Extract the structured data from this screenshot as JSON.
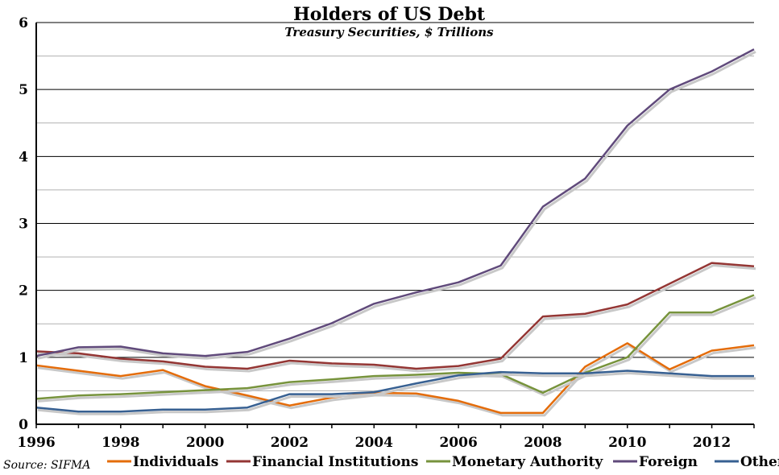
{
  "chart_data": {
    "type": "line",
    "title": "Holders of US Debt",
    "subtitle": "Treasury Securities, $ Trillions",
    "source": "Source: SIFMA",
    "xlabel": "",
    "ylabel": "",
    "x": [
      1996,
      1997,
      1998,
      1999,
      2000,
      2001,
      2002,
      2003,
      2004,
      2005,
      2006,
      2007,
      2008,
      2009,
      2010,
      2011,
      2012,
      2013
    ],
    "x_tick_labels": [
      "1996",
      "1998",
      "2000",
      "2002",
      "2004",
      "2006",
      "2008",
      "2010",
      "2012"
    ],
    "y_tick_labels": [
      "0",
      "1",
      "2",
      "3",
      "4",
      "5",
      "6"
    ],
    "xlim": [
      1996,
      2013
    ],
    "ylim": [
      0,
      6
    ],
    "grid": "horizontal, black at integers, gray at halves",
    "legend_placement": "bottom",
    "series": [
      {
        "name": "Individuals",
        "color": "#E46C0A",
        "values": [
          0.88,
          0.8,
          0.72,
          0.81,
          0.57,
          0.43,
          0.28,
          0.4,
          0.47,
          0.46,
          0.35,
          0.17,
          0.17,
          0.86,
          1.21,
          0.82,
          1.1,
          1.18
        ]
      },
      {
        "name": "Financial Institutions",
        "color": "#943634",
        "values": [
          1.09,
          1.06,
          0.98,
          0.94,
          0.86,
          0.83,
          0.95,
          0.91,
          0.89,
          0.83,
          0.87,
          0.98,
          1.61,
          1.65,
          1.79,
          2.1,
          2.41,
          2.36
        ]
      },
      {
        "name": "Monetary Authority",
        "color": "#77933C",
        "values": [
          0.38,
          0.43,
          0.45,
          0.48,
          0.51,
          0.54,
          0.63,
          0.67,
          0.72,
          0.74,
          0.77,
          0.75,
          0.47,
          0.77,
          1.0,
          1.67,
          1.67,
          1.93
        ]
      },
      {
        "name": "Foreign",
        "color": "#604A7B",
        "values": [
          1.02,
          1.15,
          1.16,
          1.06,
          1.02,
          1.08,
          1.28,
          1.51,
          1.8,
          1.97,
          2.12,
          2.37,
          3.25,
          3.67,
          4.46,
          5.0,
          5.27,
          5.6
        ]
      },
      {
        "name": "Other",
        "color": "#376092",
        "values": [
          0.25,
          0.19,
          0.19,
          0.22,
          0.22,
          0.25,
          0.45,
          0.45,
          0.48,
          0.61,
          0.73,
          0.78,
          0.76,
          0.76,
          0.8,
          0.76,
          0.72,
          0.72
        ]
      }
    ]
  }
}
